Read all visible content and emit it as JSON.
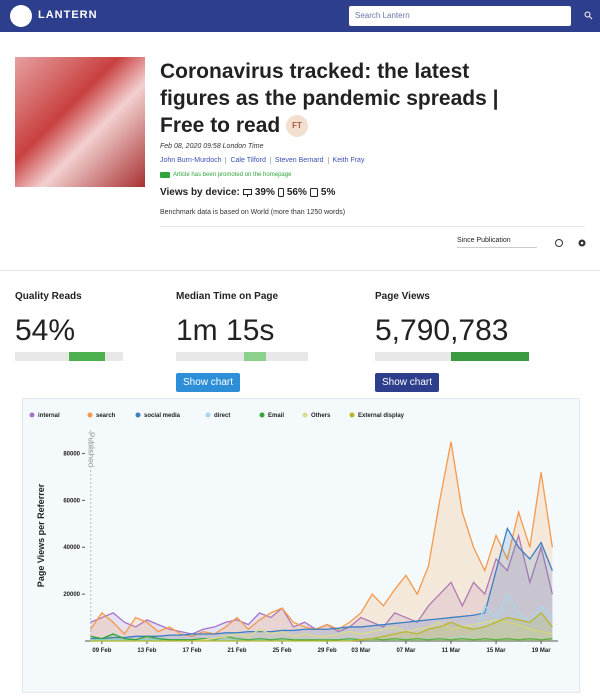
{
  "header": {
    "brand": "LANTERN",
    "search_placeholder": "Search Lantern"
  },
  "article": {
    "title": "Coronavirus tracked: the latest figures as the pandemic spreads | Free to read",
    "badge": "FT",
    "date": "Feb 08, 2020 09:58 London Time",
    "authors": [
      "John Burn-Murdoch",
      "Cale Tilford",
      "Steven Bernard",
      "Keith Fray"
    ],
    "promo": "Article has been promoted on the homepage",
    "views_label": "Views by device:",
    "devices": [
      "39%",
      "56%",
      "5%"
    ],
    "benchmark": "Benchmark data is based on World (more than 1250 words)"
  },
  "controls": {
    "period": "Since Publication"
  },
  "metrics": [
    {
      "label": "Quality Reads",
      "value": "54%"
    },
    {
      "label": "Median Time on Page",
      "value": "1m 15s",
      "button": "Show chart"
    },
    {
      "label": "Page Views",
      "value": "5,790,783",
      "button": "Show chart"
    }
  ],
  "chart_data": {
    "type": "area",
    "y_label": "Page Views per Referrer",
    "annotation": "Published",
    "categories": [
      null,
      "09 Feb",
      null,
      null,
      null,
      "13 Feb",
      null,
      null,
      null,
      "17 Feb",
      null,
      null,
      null,
      "21 Feb",
      null,
      null,
      null,
      "25 Feb",
      null,
      null,
      null,
      "29 Feb",
      null,
      null,
      "03 Mar",
      null,
      null,
      null,
      "07 Mar",
      null,
      null,
      null,
      "11 Mar",
      null,
      null,
      null,
      "15 Mar",
      null,
      null,
      null,
      "19 Mar",
      null
    ],
    "ylim": [
      0,
      90000
    ],
    "yticks": [
      20000,
      40000,
      60000,
      80000
    ],
    "series": [
      {
        "name": "internal",
        "color": "#a374c9",
        "values": [
          8000,
          10000,
          12000,
          8000,
          6000,
          9000,
          7000,
          5000,
          4000,
          3000,
          5000,
          6000,
          8000,
          9000,
          7000,
          12000,
          10000,
          14000,
          6000,
          8000,
          5000,
          7000,
          4000,
          6000,
          10000,
          8000,
          6000,
          12000,
          10000,
          8000,
          15000,
          20000,
          25000,
          15000,
          25000,
          20000,
          35000,
          30000,
          45000,
          25000,
          40000,
          20000
        ]
      },
      {
        "name": "search",
        "color": "#f5994a",
        "values": [
          5000,
          12000,
          8000,
          3000,
          10000,
          8000,
          4000,
          6000,
          3000,
          2000,
          4000,
          3000,
          6000,
          10000,
          5000,
          9000,
          12000,
          14000,
          8000,
          6000,
          5000,
          7000,
          5000,
          8000,
          12000,
          20000,
          15000,
          22000,
          28000,
          20000,
          32000,
          60000,
          85000,
          55000,
          40000,
          30000,
          45000,
          35000,
          55000,
          40000,
          72000,
          40000
        ]
      },
      {
        "name": "social media",
        "color": "#3b7fc4",
        "values": [
          1000,
          1000,
          1500,
          1500,
          2000,
          2000,
          2000,
          2500,
          2500,
          3000,
          3000,
          3000,
          3500,
          3500,
          4000,
          4000,
          4000,
          4500,
          4500,
          5000,
          5000,
          5000,
          5500,
          6000,
          6000,
          6500,
          7000,
          7500,
          8000,
          8500,
          9000,
          9500,
          10000,
          10500,
          11000,
          12000,
          30000,
          48000,
          40000,
          35000,
          42000,
          30000
        ]
      },
      {
        "name": "direct",
        "color": "#a9d6ea",
        "values": [
          500,
          500,
          500,
          500,
          500,
          500,
          500,
          500,
          500,
          500,
          500,
          500,
          500,
          500,
          500,
          500,
          500,
          500,
          500,
          500,
          500,
          500,
          500,
          500,
          500,
          500,
          500,
          500,
          500,
          1000,
          1000,
          1000,
          1500,
          2000,
          2000,
          15000,
          10000,
          20000,
          12000,
          8000,
          15000,
          10000
        ]
      },
      {
        "name": "Email",
        "color": "#2fa53a",
        "values": [
          2000,
          1000,
          3000,
          1000,
          500,
          2000,
          1000,
          500,
          500,
          500,
          1000,
          500,
          2000,
          1000,
          500,
          1000,
          500,
          1000,
          500,
          500,
          500,
          500,
          500,
          1000,
          500,
          1000,
          500,
          1000,
          500,
          1000,
          500,
          1000,
          500,
          1000,
          500,
          1000,
          500,
          1000,
          500,
          1000,
          500,
          1000
        ]
      },
      {
        "name": "Others",
        "color": "#d9dc8e",
        "values": [
          0,
          0,
          0,
          0,
          0,
          0,
          0,
          0,
          0,
          0,
          500,
          1000,
          2000,
          3000,
          2000,
          5000,
          3000,
          4000,
          2000,
          3000,
          2000,
          2000,
          3000,
          4000,
          3000,
          4000,
          5000,
          6000,
          4000,
          5000,
          6000,
          8000,
          5000,
          6000,
          7000,
          8000,
          9000,
          8000,
          7000,
          5000,
          4000,
          3000
        ]
      },
      {
        "name": "External display",
        "color": "#b8b72c",
        "values": [
          0,
          0,
          0,
          0,
          0,
          0,
          0,
          0,
          0,
          0,
          0,
          0,
          0,
          0,
          0,
          0,
          0,
          0,
          0,
          0,
          0,
          0,
          0,
          0,
          500,
          1000,
          2000,
          3000,
          4000,
          3000,
          5000,
          6000,
          8000,
          6000,
          5000,
          6000,
          8000,
          10000,
          9000,
          8000,
          12000,
          6000
        ]
      }
    ]
  }
}
